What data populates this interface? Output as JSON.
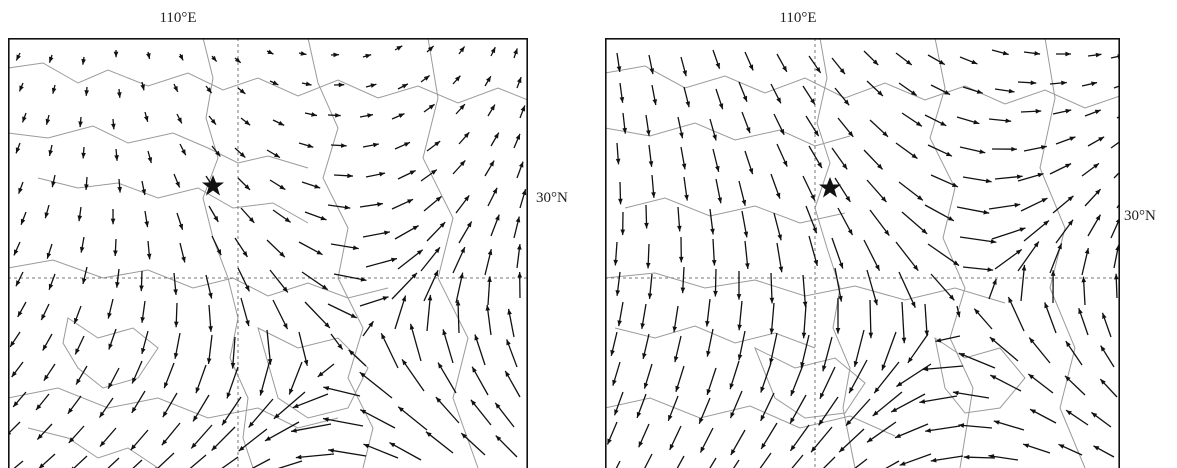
{
  "panels": [
    {
      "id": "left",
      "lon_label": "110°E",
      "lat_label": "30°N",
      "station_marker_icon": "star-icon",
      "flow": "cyclonic circulation centered to the south-east, westerly/easterly flow in the north-west"
    },
    {
      "id": "right",
      "lon_label": "110°E",
      "lat_label": "30°N",
      "station_marker_icon": "star-icon",
      "flow": "cyclonic circulation centered to the east"
    }
  ],
  "colors": {
    "vector": "#111111",
    "border": "#9a9a9a",
    "frame": "#111111"
  }
}
